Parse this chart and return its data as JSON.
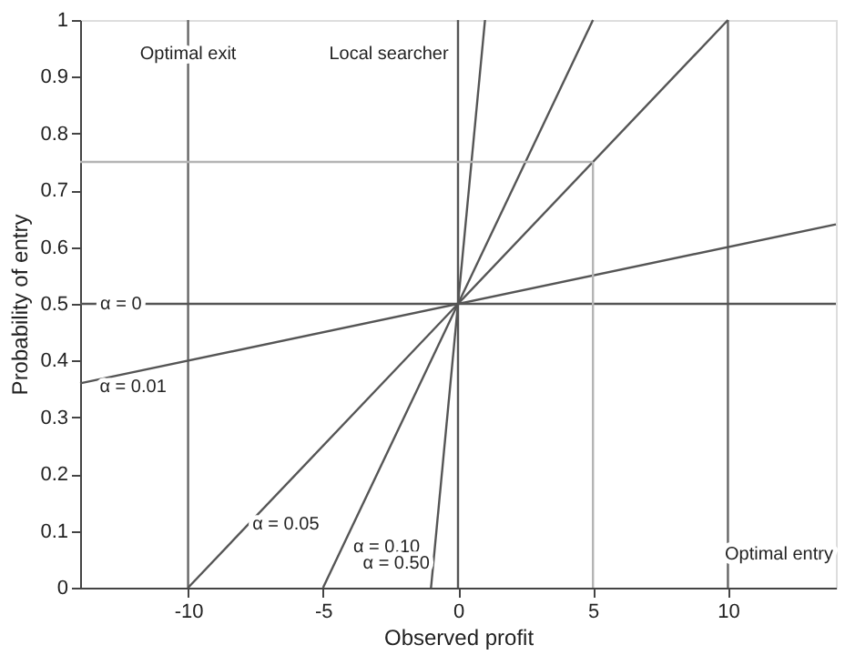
{
  "chart_data": {
    "type": "line",
    "xlabel": "Observed profit",
    "ylabel": "Probability of entry",
    "xlim": [
      -14,
      14
    ],
    "ylim": [
      0,
      1
    ],
    "xticks": [
      -10,
      -5,
      0,
      5,
      10
    ],
    "yticks": [
      0,
      0.1,
      0.2,
      0.3,
      0.4,
      0.5,
      0.6,
      0.7,
      0.8,
      0.9,
      1
    ],
    "grid": false,
    "marker": "none",
    "line_style": "solid",
    "series": [
      {
        "name": "α = 0",
        "color": "#555555",
        "x": [
          -14,
          14
        ],
        "values": [
          0.5,
          0.5
        ]
      },
      {
        "name": "α = 0.01",
        "color": "#555555",
        "x": [
          -14,
          14
        ],
        "values": [
          0.36,
          0.64
        ]
      },
      {
        "name": "α = 0.05",
        "color": "#555555",
        "x": [
          -10,
          10
        ],
        "values": [
          0,
          1
        ]
      },
      {
        "name": "α = 0.10",
        "color": "#555555",
        "x": [
          -5,
          5
        ],
        "values": [
          0,
          1
        ]
      },
      {
        "name": "α = 0.50",
        "color": "#555555",
        "x": [
          -1,
          1
        ],
        "values": [
          0,
          1
        ]
      },
      {
        "color": "#b4b4b4",
        "x": [
          5,
          5
        ],
        "values": [
          0,
          0.75
        ]
      },
      {
        "color": "#b4b4b4",
        "x": [
          -14,
          5
        ],
        "values": [
          0.75,
          0.75
        ]
      }
    ],
    "ref_lines": [
      {
        "axis": "x",
        "value": -10,
        "label": "Optimal exit",
        "color": "#666666"
      },
      {
        "axis": "x",
        "value": 0,
        "label": "Local searcher",
        "color": "#555555"
      },
      {
        "axis": "x",
        "value": 10,
        "label": "Optimal entry",
        "color": "#666666"
      }
    ]
  }
}
